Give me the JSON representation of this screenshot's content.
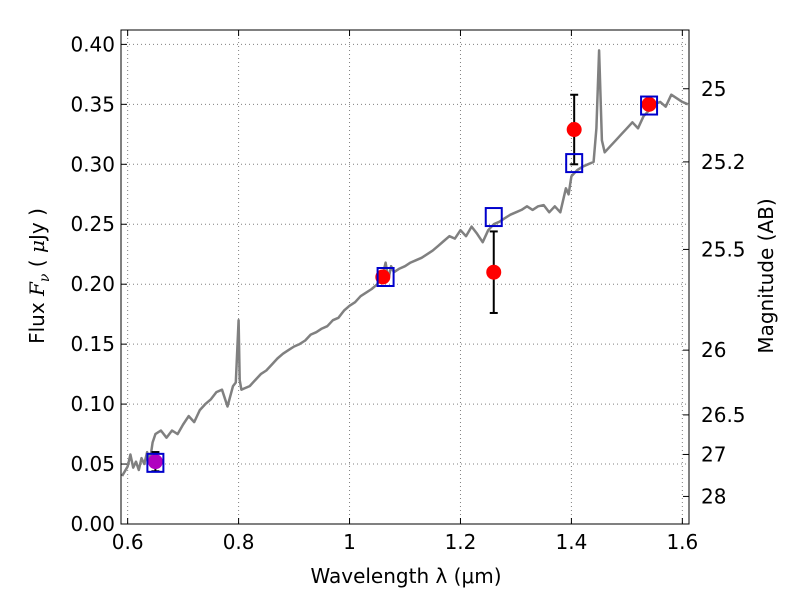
{
  "chart_data": {
    "type": "scatter",
    "xlabel": "Wavelength  λ (μm)",
    "ylabel": "Flux  F_ν  ( μJy )",
    "ylabel_right": "Magnitude (AB)",
    "xlim": [
      0.588,
      1.612
    ],
    "ylim": [
      0.0,
      0.412
    ],
    "grid": true,
    "x_ticks": [
      0.6,
      0.8,
      1.0,
      1.2,
      1.4,
      1.6
    ],
    "x_tick_labels": [
      "0.6",
      "0.8",
      "1",
      "1.2",
      "1.4",
      "1.6"
    ],
    "y_ticks": [
      0.0,
      0.05,
      0.1,
      0.15,
      0.2,
      0.25,
      0.3,
      0.35,
      0.4
    ],
    "y_tick_labels": [
      "0.00",
      "0.05",
      "0.10",
      "0.15",
      "0.20",
      "0.25",
      "0.30",
      "0.35",
      "0.40"
    ],
    "right_ticks": [
      {
        "label": "25",
        "flux": 0.363
      },
      {
        "label": "25.2",
        "flux": 0.302
      },
      {
        "label": "25.5",
        "flux": 0.229
      },
      {
        "label": "26",
        "flux": 0.145
      },
      {
        "label": "26.5",
        "flux": 0.091
      },
      {
        "label": "27",
        "flux": 0.058
      },
      {
        "label": "28",
        "flux": 0.023
      }
    ],
    "colors": {
      "model": "#808080",
      "observed": "#ff0000",
      "synthetic": "#0000cc",
      "optical_point": "#b000c0",
      "errorbar": "#000000",
      "grid": "#808080"
    },
    "series": [
      {
        "style": "line",
        "x": [
          0.59,
          0.6,
          0.605,
          0.61,
          0.615,
          0.62,
          0.625,
          0.63,
          0.635,
          0.64,
          0.645,
          0.65,
          0.66,
          0.67,
          0.68,
          0.69,
          0.7,
          0.71,
          0.72,
          0.73,
          0.74,
          0.75,
          0.76,
          0.77,
          0.78,
          0.79,
          0.795,
          0.8,
          0.802,
          0.805,
          0.81,
          0.82,
          0.83,
          0.84,
          0.85,
          0.86,
          0.87,
          0.88,
          0.89,
          0.9,
          0.91,
          0.92,
          0.93,
          0.94,
          0.95,
          0.96,
          0.97,
          0.98,
          0.99,
          1.0,
          1.01,
          1.02,
          1.03,
          1.04,
          1.05,
          1.06,
          1.065,
          1.07,
          1.075,
          1.08,
          1.09,
          1.1,
          1.11,
          1.12,
          1.13,
          1.14,
          1.15,
          1.16,
          1.17,
          1.18,
          1.19,
          1.2,
          1.21,
          1.22,
          1.23,
          1.24,
          1.25,
          1.26,
          1.27,
          1.28,
          1.29,
          1.3,
          1.31,
          1.32,
          1.33,
          1.34,
          1.35,
          1.36,
          1.37,
          1.38,
          1.39,
          1.395,
          1.4,
          1.41,
          1.42,
          1.43,
          1.44,
          1.445,
          1.45,
          1.455,
          1.46,
          1.47,
          1.48,
          1.49,
          1.5,
          1.51,
          1.52,
          1.53,
          1.54,
          1.55,
          1.56,
          1.57,
          1.58,
          1.59,
          1.6,
          1.61
        ],
        "y": [
          0.04,
          0.048,
          0.058,
          0.047,
          0.052,
          0.045,
          0.055,
          0.05,
          0.06,
          0.052,
          0.068,
          0.075,
          0.078,
          0.072,
          0.078,
          0.075,
          0.083,
          0.09,
          0.085,
          0.095,
          0.1,
          0.104,
          0.11,
          0.112,
          0.098,
          0.115,
          0.118,
          0.17,
          0.12,
          0.112,
          0.113,
          0.115,
          0.12,
          0.125,
          0.128,
          0.133,
          0.138,
          0.142,
          0.145,
          0.148,
          0.15,
          0.153,
          0.158,
          0.16,
          0.163,
          0.165,
          0.17,
          0.172,
          0.178,
          0.182,
          0.185,
          0.19,
          0.193,
          0.196,
          0.2,
          0.208,
          0.218,
          0.204,
          0.215,
          0.21,
          0.213,
          0.215,
          0.218,
          0.22,
          0.222,
          0.225,
          0.228,
          0.232,
          0.236,
          0.24,
          0.238,
          0.245,
          0.24,
          0.248,
          0.242,
          0.235,
          0.245,
          0.25,
          0.252,
          0.255,
          0.258,
          0.26,
          0.262,
          0.265,
          0.262,
          0.265,
          0.266,
          0.26,
          0.265,
          0.26,
          0.28,
          0.275,
          0.29,
          0.295,
          0.298,
          0.3,
          0.302,
          0.33,
          0.395,
          0.32,
          0.31,
          0.315,
          0.32,
          0.325,
          0.33,
          0.335,
          0.33,
          0.34,
          0.345,
          0.35,
          0.352,
          0.348,
          0.358,
          0.355,
          0.352,
          0.35
        ]
      },
      {
        "style": "scatter",
        "marker": "circle",
        "color": "observed",
        "x": [
          1.06,
          1.26,
          1.405,
          1.54
        ],
        "y": [
          0.206,
          0.21,
          0.329,
          0.35
        ],
        "yerr": [
          null,
          0.034,
          0.029,
          null
        ]
      },
      {
        "style": "scatter",
        "marker": "circle",
        "color": "optical_point",
        "x": [
          0.65
        ],
        "y": [
          0.052
        ],
        "yerr": [
          0.008
        ]
      },
      {
        "style": "scatter",
        "marker": "square",
        "color": "synthetic",
        "x": [
          0.65,
          1.065,
          1.26,
          1.405,
          1.54
        ],
        "y": [
          0.051,
          0.206,
          0.256,
          0.301,
          0.349
        ]
      }
    ]
  }
}
